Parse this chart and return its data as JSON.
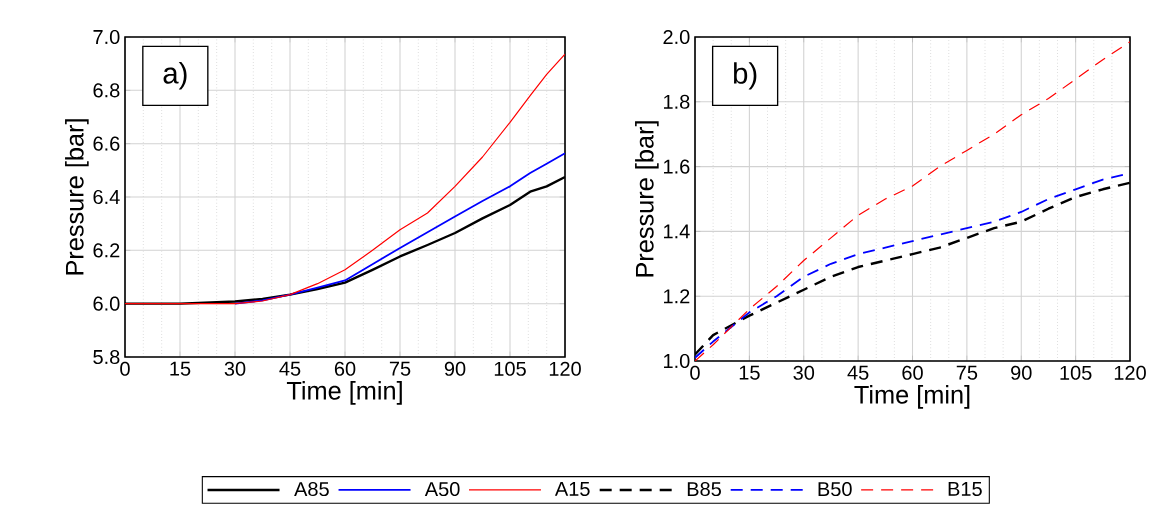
{
  "chart_data": [
    {
      "type": "line",
      "xlabel": "Time [min]",
      "ylabel": "Pressure [bar]",
      "annotations": [
        "a)"
      ],
      "grid": true,
      "legend": "bottom",
      "line_style": "solid",
      "marker": "none",
      "x": [
        0,
        15,
        30,
        37.5,
        45,
        52.5,
        60,
        67.5,
        75,
        82.5,
        90,
        97.5,
        105,
        110.5,
        115,
        120
      ],
      "xlim": [
        0,
        120
      ],
      "xticks": [
        0,
        15,
        30,
        45,
        60,
        75,
        90,
        105,
        120
      ],
      "ylim": [
        5.8,
        7.0
      ],
      "yticks": [
        5.8,
        {
          "value": 6.0,
          "label": "6.0"
        },
        6.2,
        6.4,
        6.6,
        6.8,
        {
          "value": 7.0,
          "label": "7.0"
        }
      ],
      "series": [
        {
          "name": "A85",
          "color": "#000000",
          "values": [
            6.0,
            6.0,
            6.008,
            6.018,
            6.034,
            6.055,
            6.079,
            6.127,
            6.177,
            6.22,
            6.265,
            6.32,
            6.37,
            6.42,
            6.44,
            6.475
          ]
        },
        {
          "name": "A50",
          "color": "#0000ff",
          "values": [
            null,
            null,
            6.0,
            6.012,
            6.034,
            6.06,
            6.087,
            6.148,
            6.209,
            6.268,
            6.327,
            6.385,
            6.44,
            6.49,
            6.525,
            6.564
          ]
        },
        {
          "name": "A15",
          "color": "#ff0000",
          "values": [
            6.0,
            6.0,
            6.0,
            6.01,
            6.034,
            6.075,
            6.127,
            6.2,
            6.277,
            6.34,
            6.44,
            6.55,
            6.68,
            6.78,
            6.86,
            6.936
          ]
        }
      ]
    },
    {
      "type": "line",
      "xlabel": "Time [min]",
      "ylabel": "Pressure [bar]",
      "annotations": [
        "b)"
      ],
      "grid": true,
      "legend": "bottom",
      "line_style": "dashed",
      "marker": "none",
      "x": [
        0,
        5,
        15,
        22.5,
        30,
        37.5,
        45,
        52.5,
        60,
        67.5,
        75,
        82.5,
        90,
        97.5,
        105,
        112.5,
        120
      ],
      "xlim": [
        0,
        120
      ],
      "xticks": [
        0,
        15,
        30,
        45,
        60,
        75,
        90,
        105,
        120
      ],
      "ylim": [
        1.0,
        2.0
      ],
      "yticks": [
        {
          "value": 1.0,
          "label": "1.0"
        },
        1.2,
        1.4,
        1.6,
        1.8,
        {
          "value": 2.0,
          "label": "2.0"
        }
      ],
      "series": [
        {
          "name": "B85",
          "color": "#000000",
          "values": [
            1.02,
            1.08,
            1.14,
            1.18,
            1.22,
            1.26,
            1.29,
            1.31,
            1.33,
            1.35,
            1.38,
            1.41,
            1.43,
            1.47,
            1.506,
            1.53,
            1.55
          ]
        },
        {
          "name": "B50",
          "color": "#0000ff",
          "values": [
            1.01,
            1.06,
            1.15,
            1.2,
            1.26,
            1.3,
            1.33,
            1.35,
            1.37,
            1.39,
            1.41,
            1.43,
            1.46,
            1.5,
            1.53,
            1.56,
            1.58
          ]
        },
        {
          "name": "B15",
          "color": "#ff0000",
          "values": [
            1.0,
            1.05,
            1.16,
            1.23,
            1.31,
            1.38,
            1.45,
            1.5,
            1.54,
            1.6,
            1.65,
            1.7,
            1.76,
            1.81,
            1.87,
            1.93,
            1.985
          ]
        }
      ]
    }
  ]
}
